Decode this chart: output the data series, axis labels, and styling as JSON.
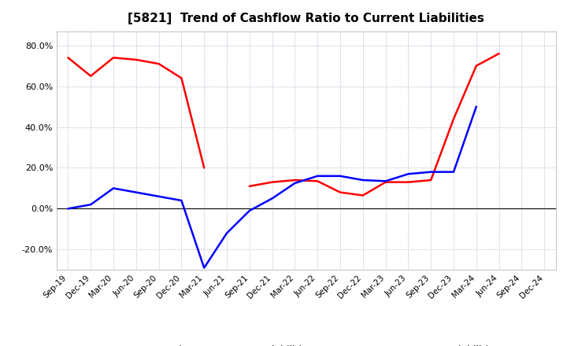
{
  "title": "[5821]  Trend of Cashflow Ratio to Current Liabilities",
  "x_labels": [
    "Sep-19",
    "Dec-19",
    "Mar-20",
    "Jun-20",
    "Sep-20",
    "Dec-20",
    "Mar-21",
    "Jun-21",
    "Sep-21",
    "Dec-21",
    "Mar-22",
    "Jun-22",
    "Sep-22",
    "Dec-22",
    "Mar-23",
    "Jun-23",
    "Sep-23",
    "Dec-23",
    "Mar-24",
    "Jun-24",
    "Sep-24",
    "Dec-24"
  ],
  "operating_cf": [
    0.74,
    0.65,
    0.74,
    0.73,
    0.71,
    0.64,
    0.2,
    null,
    0.11,
    0.13,
    0.14,
    0.135,
    0.08,
    0.065,
    0.13,
    0.13,
    0.14,
    0.44,
    0.7,
    0.76,
    null,
    null
  ],
  "free_cf": [
    0.0,
    0.02,
    0.1,
    0.08,
    0.06,
    0.04,
    -0.29,
    -0.12,
    -0.01,
    0.05,
    0.125,
    0.16,
    0.16,
    0.14,
    0.135,
    0.17,
    0.18,
    0.18,
    0.5,
    null,
    null,
    null
  ],
  "ylim": [
    -0.3,
    0.87
  ],
  "yticks": [
    -0.2,
    0.0,
    0.2,
    0.4,
    0.6,
    0.8
  ],
  "ytick_labels": [
    "-20.0%",
    "0.0%",
    "20.0%",
    "40.0%",
    "60.0%",
    "80.0%"
  ],
  "operating_color": "#ff0000",
  "free_color": "#0000ff",
  "background_color": "#ffffff",
  "grid_color": "#b0b0cc",
  "legend_op": "Operating CF to Current Liabilities",
  "legend_free": "Free CF to Current Liabilities",
  "linewidth": 1.8
}
